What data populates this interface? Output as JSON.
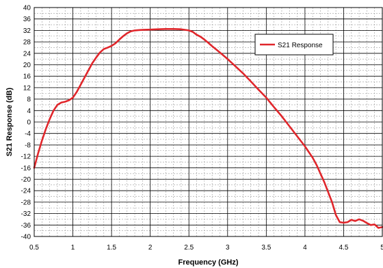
{
  "chart_data": {
    "type": "line",
    "title": "",
    "xlabel": "Frequency (GHz)",
    "ylabel": "S21 Response (dB)",
    "xlim": [
      0.5,
      5
    ],
    "ylim": [
      -40,
      40
    ],
    "x_ticks": [
      0.5,
      1,
      1.5,
      2,
      2.5,
      3,
      3.5,
      4,
      4.5,
      5
    ],
    "x_tick_labels": [
      "0.5",
      "1",
      "1.5",
      "2",
      "2.5",
      "3",
      "3.5",
      "4",
      "4.5",
      "5"
    ],
    "y_ticks": [
      -40,
      -36,
      -32,
      -28,
      -24,
      -20,
      -16,
      -12,
      -8,
      -4,
      0,
      4,
      8,
      12,
      16,
      20,
      24,
      28,
      32,
      36,
      40
    ],
    "y_tick_labels": [
      "-40",
      "-36",
      "-32",
      "-28",
      "-24",
      "-20",
      "-16",
      "-12",
      "-8",
      "-4",
      "0",
      "4",
      "8",
      "12",
      "16",
      "20",
      "24",
      "28",
      "32",
      "36",
      "40"
    ],
    "grid": {
      "major": true,
      "minor_x_step": 0.1,
      "minor_y_step": 2,
      "minor_style": "dashed"
    },
    "legend": {
      "position": "top-right"
    },
    "series": [
      {
        "name": "S21 Response",
        "color": "#e0262b",
        "x": [
          0.5,
          0.55,
          0.6,
          0.65,
          0.7,
          0.75,
          0.8,
          0.85,
          0.9,
          0.95,
          1.0,
          1.05,
          1.1,
          1.15,
          1.2,
          1.25,
          1.3,
          1.35,
          1.4,
          1.45,
          1.5,
          1.55,
          1.6,
          1.65,
          1.7,
          1.75,
          1.8,
          1.85,
          1.9,
          2.0,
          2.1,
          2.2,
          2.3,
          2.4,
          2.5,
          2.55,
          2.6,
          2.65,
          2.7,
          2.75,
          2.8,
          2.9,
          3.0,
          3.1,
          3.2,
          3.3,
          3.4,
          3.5,
          3.6,
          3.7,
          3.8,
          3.9,
          4.0,
          4.05,
          4.1,
          4.15,
          4.2,
          4.25,
          4.3,
          4.35,
          4.4,
          4.45,
          4.5,
          4.55,
          4.6,
          4.65,
          4.7,
          4.75,
          4.8,
          4.85,
          4.9,
          4.95,
          5.0
        ],
        "y": [
          -16,
          -11,
          -6.5,
          -2.5,
          1.0,
          4.0,
          6.0,
          6.8,
          7.1,
          7.6,
          8.5,
          10.5,
          13.0,
          15.5,
          18.0,
          20.5,
          22.5,
          24.3,
          25.5,
          26.0,
          26.6,
          27.5,
          28.8,
          30.0,
          31.0,
          31.7,
          32.0,
          32.1,
          32.2,
          32.3,
          32.4,
          32.5,
          32.5,
          32.4,
          32.0,
          31.5,
          30.5,
          29.8,
          28.8,
          27.7,
          26.5,
          24.3,
          22.0,
          19.5,
          17.0,
          14.2,
          11.3,
          8.5,
          5.2,
          2.0,
          -1.5,
          -5.0,
          -8.5,
          -10.5,
          -12.5,
          -15.0,
          -18.0,
          -21.0,
          -24.5,
          -28.0,
          -32.5,
          -35.0,
          -35.2,
          -35.0,
          -34.2,
          -34.6,
          -34.0,
          -34.5,
          -35.3,
          -36.0,
          -35.8,
          -37.0,
          -36.7
        ]
      }
    ]
  }
}
